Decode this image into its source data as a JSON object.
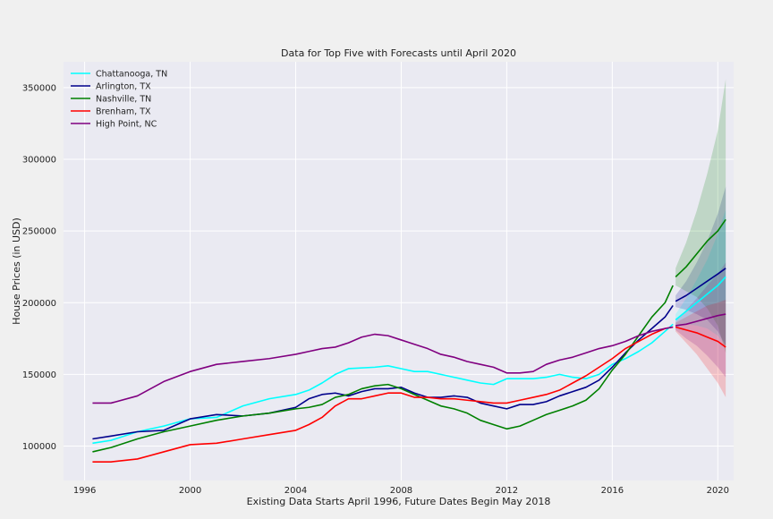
{
  "chart_data": {
    "type": "line",
    "title": "Data for Top Five with Forecasts until April 2020",
    "xlabel": "Existing Data Starts April 1996, Future Dates Begin May 2018",
    "ylabel": "House Prices (in USD)",
    "xlim": [
      1995.2,
      2020.6
    ],
    "ylim": [
      76000,
      368000
    ],
    "xticks": [
      1996,
      2000,
      2004,
      2008,
      2012,
      2016,
      2020
    ],
    "xtick_labels": [
      "1996",
      "2000",
      "2004",
      "2008",
      "2012",
      "2016",
      "2020"
    ],
    "yticks": [
      100000,
      150000,
      200000,
      250000,
      300000,
      350000
    ],
    "ytick_labels": [
      "100000",
      "150000",
      "200000",
      "250000",
      "300000",
      "350000"
    ],
    "grid": true,
    "legend_position": "top-left",
    "forecast_start": 2018.33,
    "series": [
      {
        "name": "Chattanooga, TN",
        "color": "#00ffff",
        "x": [
          1996.3,
          1997.0,
          1998.0,
          1999.0,
          2000.0,
          2001.0,
          2002.0,
          2003.0,
          2004.0,
          2004.5,
          2005.0,
          2005.5,
          2006.0,
          2007.0,
          2007.5,
          2008.0,
          2008.5,
          2009.0,
          2009.5,
          2010.0,
          2010.5,
          2011.0,
          2011.5,
          2012.0,
          2012.5,
          2013.0,
          2013.5,
          2014.0,
          2014.5,
          2015.0,
          2015.5,
          2016.0,
          2016.5,
          2017.0,
          2017.5,
          2018.0,
          2018.3
        ],
        "y": [
          102000,
          104000,
          110000,
          114000,
          119000,
          120000,
          128000,
          133000,
          136000,
          139000,
          144000,
          150000,
          154000,
          155000,
          156000,
          154000,
          152000,
          152000,
          150000,
          148000,
          146000,
          144000,
          143000,
          147000,
          147000,
          147000,
          148000,
          150000,
          148000,
          147000,
          150000,
          157000,
          161000,
          166000,
          172000,
          180000,
          185000
        ],
        "forecast": {
          "x": [
            2018.4,
            2018.8,
            2019.2,
            2019.6,
            2020.0,
            2020.3
          ],
          "y": [
            188000,
            194000,
            200000,
            206000,
            212000,
            218000
          ],
          "upper": [
            192000,
            203000,
            216000,
            230000,
            248000,
            265000
          ],
          "lower": [
            184000,
            185000,
            184000,
            182000,
            177000,
            170000
          ]
        }
      },
      {
        "name": "Arlington, TX",
        "color": "#00008b",
        "x": [
          1996.3,
          1997.0,
          1998.0,
          1999.0,
          2000.0,
          2001.0,
          2002.0,
          2003.0,
          2004.0,
          2004.5,
          2005.0,
          2005.5,
          2006.0,
          2006.5,
          2007.0,
          2007.5,
          2008.0,
          2008.5,
          2009.0,
          2009.5,
          2010.0,
          2010.5,
          2011.0,
          2011.5,
          2012.0,
          2012.5,
          2013.0,
          2013.5,
          2014.0,
          2014.5,
          2015.0,
          2015.5,
          2016.0,
          2016.5,
          2017.0,
          2017.5,
          2018.0,
          2018.3
        ],
        "y": [
          105000,
          107000,
          110000,
          111000,
          119000,
          122000,
          121000,
          123000,
          127000,
          133000,
          136000,
          137000,
          135000,
          138000,
          140000,
          140000,
          141000,
          137000,
          134000,
          134000,
          135000,
          134000,
          130000,
          128000,
          126000,
          129000,
          129000,
          131000,
          135000,
          138000,
          141000,
          146000,
          155000,
          165000,
          174000,
          182000,
          190000,
          198000
        ],
        "forecast": {
          "x": [
            2018.4,
            2018.8,
            2019.2,
            2019.6,
            2020.0,
            2020.3
          ],
          "y": [
            201000,
            205000,
            210000,
            215000,
            220000,
            224000
          ],
          "upper": [
            205000,
            215000,
            228000,
            243000,
            262000,
            281000
          ],
          "lower": [
            197000,
            195000,
            192000,
            188000,
            180000,
            170000
          ]
        }
      },
      {
        "name": "Nashville, TN",
        "color": "#008000",
        "x": [
          1996.3,
          1997.0,
          1998.0,
          1999.0,
          2000.0,
          2001.0,
          2002.0,
          2003.0,
          2004.0,
          2004.5,
          2005.0,
          2005.5,
          2006.0,
          2006.5,
          2007.0,
          2007.5,
          2008.0,
          2008.5,
          2009.0,
          2009.5,
          2010.0,
          2010.5,
          2011.0,
          2011.5,
          2012.0,
          2012.5,
          2013.0,
          2013.5,
          2014.0,
          2014.5,
          2015.0,
          2015.5,
          2016.0,
          2016.5,
          2017.0,
          2017.5,
          2018.0,
          2018.3
        ],
        "y": [
          96000,
          99000,
          105000,
          110000,
          114000,
          118000,
          121000,
          123000,
          126000,
          127000,
          129000,
          134000,
          136000,
          140000,
          142000,
          143000,
          140000,
          136000,
          132000,
          128000,
          126000,
          123000,
          118000,
          115000,
          112000,
          114000,
          118000,
          122000,
          125000,
          128000,
          132000,
          140000,
          153000,
          164000,
          177000,
          190000,
          200000,
          212000
        ],
        "forecast": {
          "x": [
            2018.4,
            2018.8,
            2019.2,
            2019.6,
            2020.0,
            2020.3
          ],
          "y": [
            218000,
            225000,
            234000,
            243000,
            250000,
            258000
          ],
          "upper": [
            224000,
            242000,
            264000,
            290000,
            320000,
            356000
          ],
          "lower": [
            212000,
            208000,
            204000,
            196000,
            184000,
            165000
          ]
        }
      },
      {
        "name": "Brenham, TX",
        "color": "#ff0000",
        "x": [
          1996.3,
          1997.0,
          1998.0,
          1999.0,
          2000.0,
          2001.0,
          2002.0,
          2003.0,
          2004.0,
          2004.5,
          2005.0,
          2005.5,
          2006.0,
          2006.5,
          2007.0,
          2007.5,
          2008.0,
          2008.5,
          2009.0,
          2009.5,
          2010.0,
          2010.5,
          2011.0,
          2011.5,
          2012.0,
          2012.5,
          2013.0,
          2013.5,
          2014.0,
          2014.5,
          2015.0,
          2015.5,
          2016.0,
          2016.5,
          2017.0,
          2017.5,
          2018.0,
          2018.3
        ],
        "y": [
          89000,
          89000,
          91000,
          96000,
          101000,
          102000,
          105000,
          108000,
          111000,
          115000,
          120000,
          128000,
          133000,
          133000,
          135000,
          137000,
          137000,
          134000,
          134000,
          133000,
          133000,
          132000,
          131000,
          130000,
          130000,
          132000,
          134000,
          136000,
          139000,
          144000,
          149000,
          155000,
          161000,
          168000,
          173000,
          178000,
          182000,
          183000
        ],
        "forecast": {
          "x": [
            2018.4,
            2018.8,
            2019.2,
            2019.6,
            2020.0,
            2020.3
          ],
          "y": [
            183000,
            181000,
            179000,
            176000,
            173000,
            169000
          ],
          "upper": [
            186000,
            190000,
            194000,
            198000,
            200000,
            202000
          ],
          "lower": [
            180000,
            172000,
            164000,
            154000,
            144000,
            134000
          ]
        }
      },
      {
        "name": "High Point, NC",
        "color": "#800080",
        "x": [
          1996.3,
          1997.0,
          1998.0,
          1999.0,
          2000.0,
          2001.0,
          2002.0,
          2003.0,
          2004.0,
          2004.5,
          2005.0,
          2005.5,
          2006.0,
          2006.5,
          2007.0,
          2007.5,
          2008.0,
          2008.5,
          2009.0,
          2009.5,
          2010.0,
          2010.5,
          2011.0,
          2011.5,
          2012.0,
          2012.5,
          2013.0,
          2013.5,
          2014.0,
          2014.5,
          2015.0,
          2015.5,
          2016.0,
          2016.5,
          2017.0,
          2017.5,
          2018.0,
          2018.3
        ],
        "y": [
          130000,
          130000,
          135000,
          145000,
          152000,
          157000,
          159000,
          161000,
          164000,
          166000,
          168000,
          169000,
          172000,
          176000,
          178000,
          177000,
          174000,
          171000,
          168000,
          164000,
          162000,
          159000,
          157000,
          155000,
          151000,
          151000,
          152000,
          157000,
          160000,
          162000,
          165000,
          168000,
          170000,
          173000,
          177000,
          180000,
          182000,
          183000
        ],
        "forecast": {
          "x": [
            2018.4,
            2018.8,
            2019.2,
            2019.6,
            2020.0,
            2020.3
          ],
          "y": [
            184000,
            185000,
            187000,
            189000,
            191000,
            192000
          ],
          "upper": [
            187000,
            195000,
            203000,
            212000,
            220000,
            228000
          ],
          "lower": [
            181000,
            175000,
            170000,
            163000,
            155000,
            148000
          ]
        }
      }
    ]
  }
}
